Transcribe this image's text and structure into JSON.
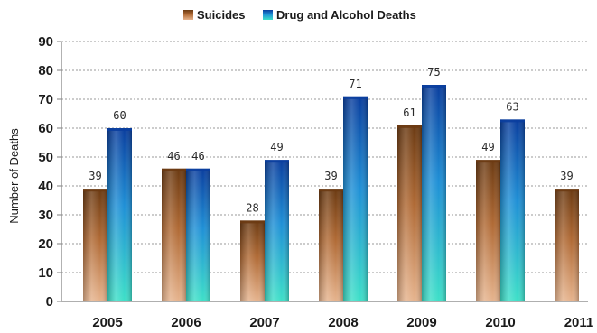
{
  "chart_data": {
    "type": "bar",
    "categories": [
      "2005",
      "2006",
      "2007",
      "2008",
      "2009",
      "2010",
      "2011"
    ],
    "series": [
      {
        "name": "Suicides",
        "values": [
          39,
          46,
          28,
          39,
          61,
          49,
          39
        ],
        "labels": [
          "39",
          "46",
          "28",
          "39",
          "61",
          "49",
          "39"
        ],
        "color_top": "#6b3a12",
        "color_mid": "#b06a35",
        "color_bottom": "#e6b48e"
      },
      {
        "name": "Drug and Alcohol Deaths",
        "values": [
          60,
          46,
          49,
          71,
          75,
          63,
          null
        ],
        "labels": [
          "60",
          "46",
          "49",
          "71",
          "75",
          "63",
          ""
        ],
        "color_top": "#0a3e9e",
        "color_mid": "#1f90d6",
        "color_bottom": "#3ee0c8"
      }
    ],
    "title": "",
    "xlabel": "",
    "ylabel": "Number of Deaths",
    "ylim": [
      0,
      90
    ],
    "yticks": [
      "0",
      "10",
      "20",
      "30",
      "40",
      "50",
      "60",
      "70",
      "80",
      "90"
    ],
    "grid": true,
    "legend_position": "top-center",
    "grid_color": "#9a9a9a",
    "axis_color": "#7f7f7f"
  }
}
